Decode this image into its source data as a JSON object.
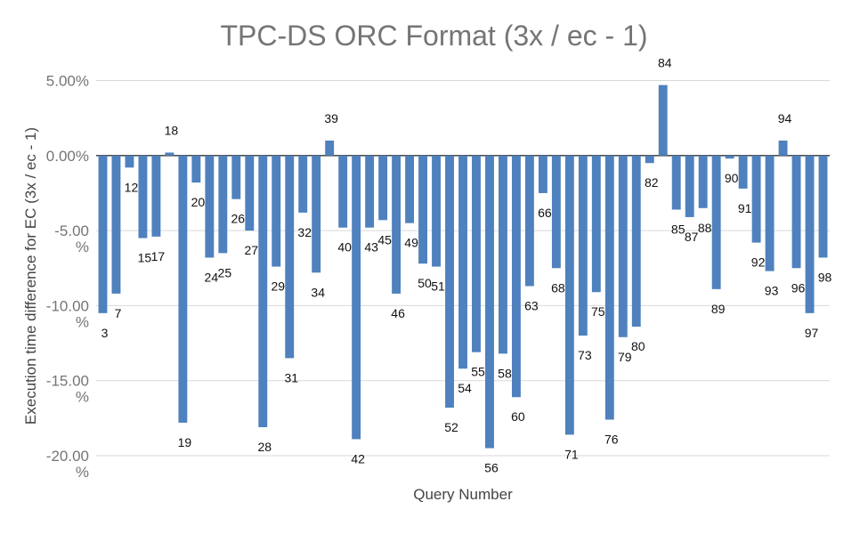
{
  "chart_data": {
    "type": "bar",
    "title": "TPC-DS ORC Format (3x / ec - 1)",
    "xlabel": "Query Number",
    "ylabel": "Execution time difference for EC (3x / ec - 1)",
    "y_unit": "percent",
    "ylim": [
      -20,
      5
    ],
    "yticks": [
      5,
      0,
      -5,
      -10,
      -15,
      -20
    ],
    "ytick_labels": [
      "5.00%",
      "0.00%",
      "-5.00\n%",
      "-10.00\n%",
      "-15.00\n%",
      "-20.00\n%"
    ],
    "grid": true,
    "legend": "none",
    "bar_color": "#4e81bd",
    "categories": [
      "3",
      "7",
      "12",
      "15",
      "17",
      "18",
      "19",
      "20",
      "24",
      "25",
      "26",
      "27",
      "28",
      "29",
      "31",
      "32",
      "34",
      "39",
      "40",
      "42",
      "43",
      "45",
      "46",
      "49",
      "50",
      "51",
      "52",
      "54",
      "55",
      "56",
      "58",
      "60",
      "63",
      "66",
      "68",
      "71",
      "73",
      "75",
      "76",
      "79",
      "80",
      "82",
      "84",
      "85",
      "87",
      "88",
      "89",
      "90",
      "91",
      "92",
      "93",
      "94",
      "96",
      "97",
      "98"
    ],
    "values": [
      -10.5,
      -9.2,
      -0.8,
      -5.5,
      -5.4,
      0.2,
      -17.8,
      -1.8,
      -6.8,
      -6.5,
      -2.9,
      -5.0,
      -18.1,
      -7.4,
      -13.5,
      -3.8,
      -7.8,
      1.0,
      -4.8,
      -18.9,
      -4.8,
      -4.3,
      -9.2,
      -4.5,
      -7.2,
      -7.4,
      -16.8,
      -14.2,
      -13.1,
      -19.5,
      -13.2,
      -16.1,
      -8.7,
      -2.5,
      -7.5,
      -18.6,
      -12.0,
      -9.1,
      -17.6,
      -12.1,
      -11.4,
      -0.5,
      4.7,
      -3.6,
      -4.1,
      -3.5,
      -8.9,
      -0.2,
      -2.2,
      -5.8,
      -7.7,
      1.0,
      -7.5,
      -10.5,
      -6.8
    ]
  }
}
